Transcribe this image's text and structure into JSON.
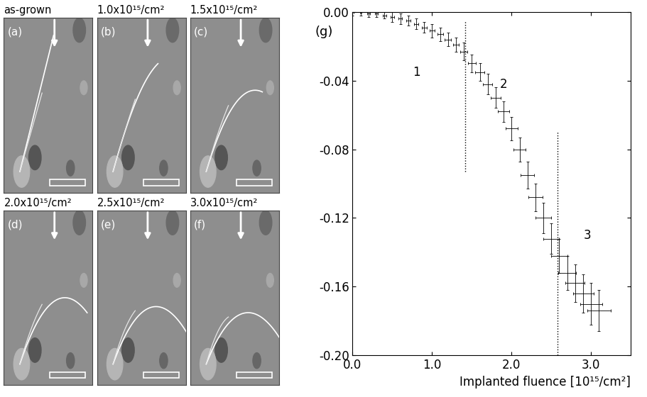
{
  "chart_data": {
    "type": "scatter",
    "panel_letter": "(g)",
    "x_label": "Implanted fluence [10¹⁵/cm²]",
    "x": [
      0.0,
      0.1,
      0.2,
      0.3,
      0.4,
      0.5,
      0.6,
      0.7,
      0.8,
      0.9,
      1.0,
      1.1,
      1.2,
      1.3,
      1.4,
      1.5,
      1.6,
      1.7,
      1.8,
      1.9,
      2.0,
      2.1,
      2.2,
      2.3,
      2.4,
      2.5,
      2.6,
      2.7,
      2.8,
      2.9,
      3.0,
      3.1
    ],
    "values": [
      0.0,
      0.0,
      -0.001,
      -0.001,
      -0.002,
      -0.003,
      -0.004,
      -0.005,
      -0.007,
      -0.009,
      -0.011,
      -0.013,
      -0.016,
      -0.019,
      -0.023,
      -0.03,
      -0.035,
      -0.042,
      -0.05,
      -0.058,
      -0.068,
      -0.08,
      -0.095,
      -0.108,
      -0.12,
      -0.132,
      -0.142,
      -0.152,
      -0.158,
      -0.164,
      -0.17,
      -0.174
    ],
    "xerr": [
      0.01,
      0.01,
      0.015,
      0.015,
      0.02,
      0.02,
      0.025,
      0.025,
      0.03,
      0.03,
      0.035,
      0.035,
      0.04,
      0.04,
      0.045,
      0.05,
      0.055,
      0.06,
      0.065,
      0.07,
      0.075,
      0.08,
      0.085,
      0.09,
      0.095,
      0.1,
      0.105,
      0.11,
      0.12,
      0.13,
      0.14,
      0.15
    ],
    "yerr": [
      0.002,
      0.002,
      0.002,
      0.002,
      0.002,
      0.003,
      0.003,
      0.003,
      0.003,
      0.003,
      0.004,
      0.004,
      0.004,
      0.004,
      0.005,
      0.005,
      0.005,
      0.006,
      0.006,
      0.006,
      0.007,
      0.007,
      0.008,
      0.008,
      0.009,
      0.009,
      0.01,
      0.01,
      0.011,
      0.011,
      0.012,
      0.012
    ],
    "color": "#000000",
    "marker": "none",
    "xlim": [
      0.0,
      3.5
    ],
    "ylim": [
      -0.2,
      0.0
    ],
    "xticks": [
      {
        "value": 0.0,
        "label": "0.0"
      },
      {
        "value": 1.0,
        "label": "1.0"
      },
      {
        "value": 2.0,
        "label": "2.0"
      },
      {
        "value": 3.0,
        "label": "3.0"
      }
    ],
    "yticks": [
      {
        "value": 0.0,
        "label": "0.00"
      },
      {
        "value": -0.04,
        "label": "-0.04"
      },
      {
        "value": -0.08,
        "label": "-0.08"
      },
      {
        "value": -0.12,
        "label": "-0.12"
      },
      {
        "value": -0.16,
        "label": "-0.16"
      },
      {
        "value": -0.2,
        "label": "-0.20"
      }
    ],
    "vlines": [
      {
        "x": 1.42,
        "ymin": -0.093,
        "ymax": -0.005
      },
      {
        "x": 2.58,
        "ymin": -0.2,
        "ymax": -0.07
      }
    ],
    "annotations": [
      {
        "text": "1",
        "x": 0.8,
        "y": -0.035
      },
      {
        "text": "2",
        "x": 1.9,
        "y": -0.042
      },
      {
        "text": "3",
        "x": 2.95,
        "y": -0.13
      }
    ],
    "grid": false
  },
  "panels": [
    {
      "letter": "(a)",
      "label": "as-grown"
    },
    {
      "letter": "(b)",
      "label": "1.0x10¹⁵/cm²"
    },
    {
      "letter": "(c)",
      "label": "1.5x10¹⁵/cm²"
    },
    {
      "letter": "(d)",
      "label": "2.0x10¹⁵/cm²"
    },
    {
      "letter": "(e)",
      "label": "2.5x10¹⁵/cm²"
    },
    {
      "letter": "(f)",
      "label": "3.0x10¹⁵/cm²"
    }
  ]
}
